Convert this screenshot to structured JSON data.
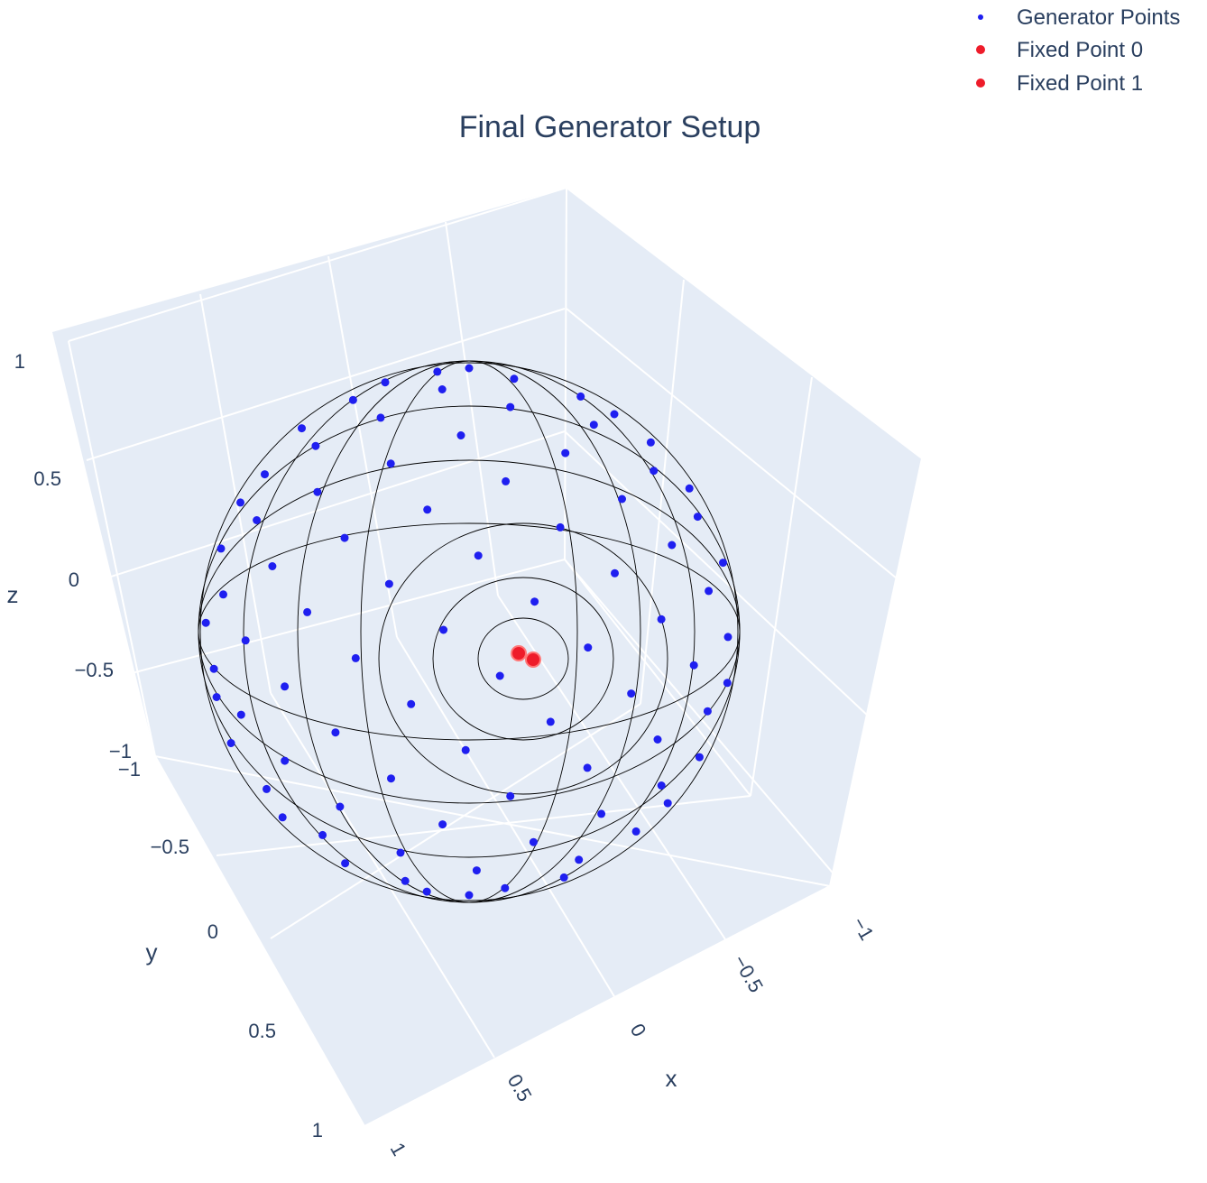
{
  "chart_data": {
    "type": "scatter",
    "title": "Final Generator Setup",
    "axes": {
      "x": {
        "label": "x",
        "range": [
          -1,
          1
        ],
        "ticks": [
          "−1",
          "−0.5",
          "0",
          "0.5",
          "1"
        ]
      },
      "y": {
        "label": "y",
        "range": [
          -1,
          1
        ],
        "ticks": [
          "−1",
          "−0.5",
          "0",
          "0.5",
          "1"
        ]
      },
      "z": {
        "label": "z",
        "range": [
          -1,
          1
        ],
        "ticks": [
          "−1",
          "−0.5",
          "0",
          "0.5",
          "1"
        ]
      }
    },
    "grid": true,
    "legend_position": "top-right",
    "series": [
      {
        "name": "Generator Points",
        "color": "#1f1ff0",
        "count": 150
      },
      {
        "name": "Fixed Point 0",
        "color": "#ee1c2a"
      },
      {
        "name": "Fixed Point 1",
        "color": "#ee1c2a"
      }
    ],
    "sphere_mesh": {
      "color": "#000000",
      "description_shown": false
    }
  }
}
